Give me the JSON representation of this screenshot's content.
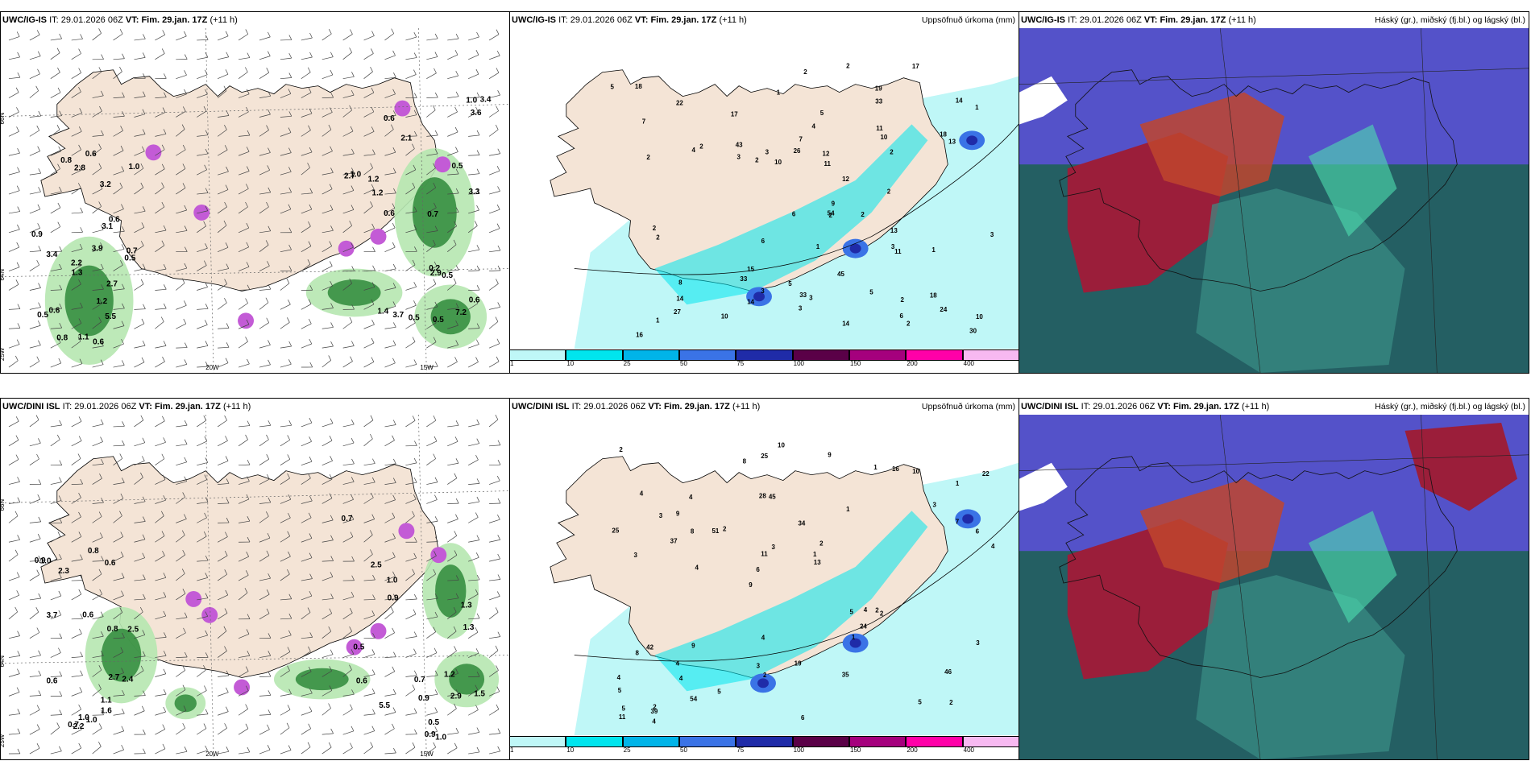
{
  "rows": [
    {
      "model": "UWC/IG-IS",
      "it_label": "IT:",
      "it_value": "29.01.2026 06Z",
      "vt_label": "VT:",
      "vt_value": "Fim. 29.jan. 17Z",
      "lead": "(+11 h)",
      "precip_title": "Uppsöfnuð úrkoma (mm)",
      "cloud_title": "Háský (gr.), miðský (fj.bl.) og lágský (bl.)",
      "wind_values": [
        "0.6",
        "0.6",
        "0.6",
        "1.2",
        "0.6",
        "0.5",
        "0.5",
        "0.6",
        "1.3",
        "1.4",
        "0.5",
        "2.7",
        "2.2",
        "0.2",
        "3.1",
        "1.0",
        "0.9",
        "3.6",
        "2.7",
        "3.3",
        "5.5",
        "2.9",
        "0.8",
        "7.2",
        "3.9",
        "0.5",
        "3.4",
        "1.2",
        "1.1",
        "2.1",
        "1.2",
        "3.4",
        "3.2",
        "3.7",
        "0.8",
        "0.5",
        "0.6",
        "1.0",
        "0.7",
        "0.5",
        "2.8",
        "0.7",
        "1.0",
        "0.6"
      ],
      "precip_values": [
        "1",
        "1",
        "9",
        "1",
        "1",
        "2",
        "18",
        "19",
        "2",
        "33",
        "30",
        "3",
        "3",
        "2",
        "5",
        "43",
        "3",
        "2",
        "6",
        "1",
        "5",
        "27",
        "3",
        "2",
        "11",
        "33",
        "3",
        "4",
        "13",
        "45",
        "24",
        "6",
        "5",
        "16",
        "54",
        "14",
        "33",
        "2",
        "2",
        "5",
        "4",
        "15",
        "17",
        "14",
        "2",
        "2",
        "7",
        "3",
        "3",
        "10",
        "7",
        "26",
        "18",
        "6",
        "8",
        "22",
        "18",
        "10",
        "12",
        "13",
        "11",
        "11",
        "10",
        "14",
        "2",
        "2",
        "17",
        "14",
        "10",
        "12",
        "2",
        "2"
      ]
    },
    {
      "model": "UWC/DINI ISL",
      "it_label": "IT:",
      "it_value": "29.01.2026 06Z",
      "vt_label": "VT:",
      "vt_value": "Fim. 29.jan. 17Z",
      "lead": "(+11 h)",
      "precip_title": "Uppsöfnuð úrkoma (mm)",
      "cloud_title": "Háský (gr.), miðský (fj.bl.) og lágský (bl.)",
      "wind_values": [
        "0.7",
        "0.9",
        "0.6",
        "0.7",
        "2.5",
        "0.6",
        "1.0",
        "0.5",
        "0.8",
        "2.5",
        "0.6",
        "1.5",
        "2.2",
        "1.0",
        "0.6",
        "0.5",
        "1.1",
        "2.9",
        "2.4",
        "1.3",
        "1.0",
        "1.3",
        "3.7",
        "0.9",
        "1.0",
        "5.5",
        "0.8",
        "0.9",
        "2.3",
        "1.0",
        "0.9",
        "1.2",
        "2.7",
        "0.7",
        "1.6"
      ],
      "precip_values": [
        "2",
        "3",
        "1",
        "9",
        "1",
        "2",
        "28",
        "34",
        "42",
        "2",
        "5",
        "4",
        "45",
        "2",
        "2",
        "4",
        "25",
        "4",
        "5",
        "7",
        "6",
        "3",
        "11",
        "4",
        "1",
        "9",
        "5",
        "46",
        "2",
        "6",
        "51",
        "37",
        "1",
        "54",
        "6",
        "1",
        "5",
        "2",
        "13",
        "8",
        "3",
        "22",
        "24",
        "35",
        "4",
        "4",
        "11",
        "19",
        "10",
        "10",
        "4",
        "25",
        "9",
        "16",
        "39",
        "9",
        "8",
        "3",
        "3",
        "4",
        "5",
        "4",
        "8",
        "4",
        "2",
        "3"
      ]
    }
  ],
  "axis_labels": {
    "lat_66": "66N",
    "lat_64": "64N",
    "lon_25": "25W",
    "lon_20": "20W",
    "lon_15": "15W"
  },
  "colorbar": {
    "ticks": [
      "1",
      "10",
      "25",
      "50",
      "75",
      "100",
      "150",
      "200",
      "400"
    ],
    "colors": [
      "#bff7f7",
      "#00e5ee",
      "#00b4e8",
      "#3a73e6",
      "#1f2ba8",
      "#5a0047",
      "#a5007d",
      "#ff00a8",
      "#f7b9f1"
    ]
  },
  "colors": {
    "land": "#f4e4d6",
    "precip_light": "#bff7f7",
    "cloud_high": "#9b1e3a",
    "cloud_mid": "#5452c9",
    "cloud_low": "#245f63"
  }
}
